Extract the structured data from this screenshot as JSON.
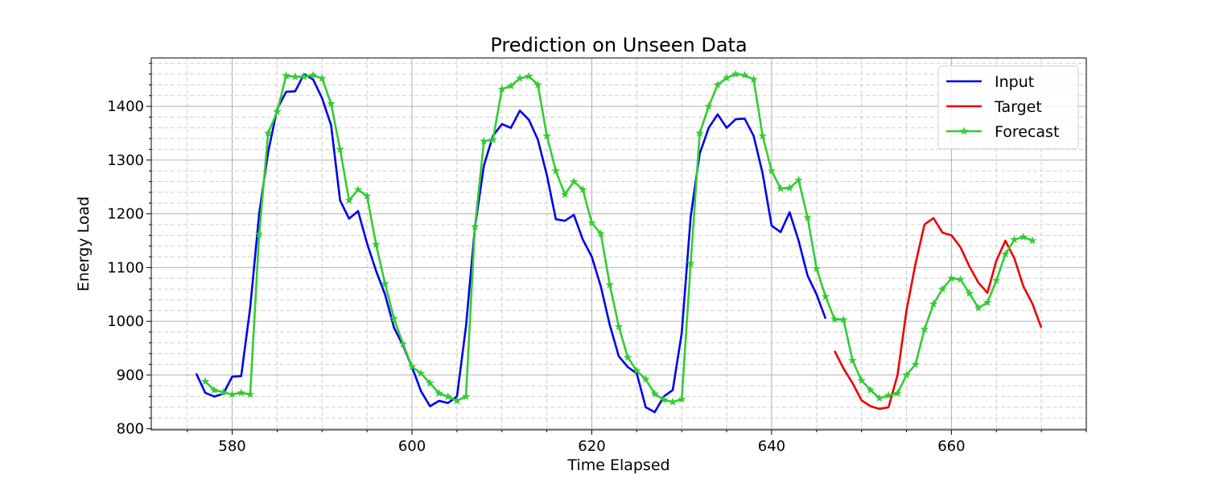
{
  "chart_data": {
    "type": "line",
    "title": "Prediction on Unseen Data",
    "xlabel": "Time Elapsed",
    "ylabel": "Energy Load",
    "xlim": [
      571,
      675
    ],
    "ylim": [
      798,
      1490
    ],
    "x_ticks": [
      580,
      600,
      620,
      640,
      660
    ],
    "y_ticks": [
      800,
      900,
      1000,
      1100,
      1200,
      1300,
      1400
    ],
    "grid": true,
    "minor_grid": true,
    "legend_position": "top-right",
    "series": [
      {
        "name": "Input",
        "color": "#0000ee",
        "marker": "none",
        "x": [
          576,
          577,
          578,
          579,
          580,
          581,
          582,
          583,
          584,
          585,
          586,
          587,
          588,
          589,
          590,
          591,
          592,
          593,
          594,
          595,
          596,
          597,
          598,
          599,
          600,
          601,
          602,
          603,
          604,
          605,
          606,
          607,
          608,
          609,
          610,
          611,
          612,
          613,
          614,
          615,
          616,
          617,
          618,
          619,
          620,
          621,
          622,
          623,
          624,
          625,
          626,
          627,
          628,
          629,
          630,
          631,
          632,
          633,
          634,
          635,
          636,
          637,
          638,
          639,
          640,
          641,
          642,
          643,
          644,
          645,
          646
        ],
        "y": [
          903,
          867,
          860,
          865,
          897,
          898,
          1025,
          1200,
          1315,
          1395,
          1427,
          1428,
          1460,
          1450,
          1415,
          1365,
          1225,
          1191,
          1205,
          1145,
          1094,
          1050,
          988,
          955,
          915,
          870,
          842,
          852,
          848,
          860,
          990,
          1175,
          1290,
          1345,
          1367,
          1360,
          1392,
          1375,
          1338,
          1272,
          1190,
          1187,
          1198,
          1152,
          1120,
          1065,
          993,
          935,
          915,
          903,
          840,
          831,
          860,
          872,
          978,
          1195,
          1312,
          1360,
          1385,
          1360,
          1376,
          1377,
          1345,
          1275,
          1178,
          1166,
          1203,
          1150,
          1085,
          1050,
          1005
        ]
      },
      {
        "name": "Target",
        "color": "#ee0000",
        "marker": "none",
        "x": [
          647,
          648,
          649,
          650,
          651,
          652,
          653,
          654,
          655,
          656,
          657,
          658,
          659,
          660,
          661,
          662,
          663,
          664,
          665,
          666,
          667,
          668,
          669,
          670
        ],
        "y": [
          945,
          912,
          885,
          853,
          842,
          837,
          840,
          900,
          1020,
          1107,
          1180,
          1192,
          1165,
          1160,
          1138,
          1102,
          1072,
          1053,
          1113,
          1150,
          1117,
          1065,
          1033,
          988
        ]
      },
      {
        "name": "Forecast",
        "color": "#33cc33",
        "marker": "star",
        "x": [
          577,
          578,
          579,
          580,
          581,
          582,
          583,
          584,
          585,
          586,
          587,
          588,
          589,
          590,
          591,
          592,
          593,
          594,
          595,
          596,
          597,
          598,
          599,
          600,
          601,
          602,
          603,
          604,
          605,
          606,
          607,
          608,
          609,
          610,
          611,
          612,
          613,
          614,
          615,
          616,
          617,
          618,
          619,
          620,
          621,
          622,
          623,
          624,
          625,
          626,
          627,
          628,
          629,
          630,
          631,
          632,
          633,
          634,
          635,
          636,
          637,
          638,
          639,
          640,
          641,
          642,
          643,
          644,
          645,
          646,
          647,
          648,
          649,
          650,
          651,
          652,
          653,
          654,
          655,
          656,
          657,
          658,
          659,
          660,
          661,
          662,
          663,
          664,
          665,
          666,
          667,
          668,
          669
        ],
        "y": [
          888,
          872,
          868,
          864,
          867,
          864,
          1162,
          1350,
          1390,
          1457,
          1455,
          1455,
          1458,
          1452,
          1405,
          1320,
          1225,
          1245,
          1233,
          1143,
          1070,
          1005,
          958,
          916,
          903,
          885,
          866,
          860,
          852,
          860,
          1176,
          1335,
          1338,
          1432,
          1438,
          1452,
          1456,
          1440,
          1345,
          1280,
          1236,
          1260,
          1245,
          1183,
          1163,
          1068,
          990,
          933,
          908,
          892,
          865,
          854,
          850,
          855,
          1108,
          1350,
          1400,
          1440,
          1453,
          1460,
          1458,
          1450,
          1345,
          1280,
          1247,
          1248,
          1263,
          1193,
          1098,
          1046,
          1004,
          1003,
          927,
          890,
          872,
          857,
          862,
          866,
          900,
          920,
          985,
          1032,
          1060,
          1080,
          1078,
          1052,
          1025,
          1035,
          1076,
          1125,
          1152,
          1157,
          1150
        ]
      }
    ]
  }
}
